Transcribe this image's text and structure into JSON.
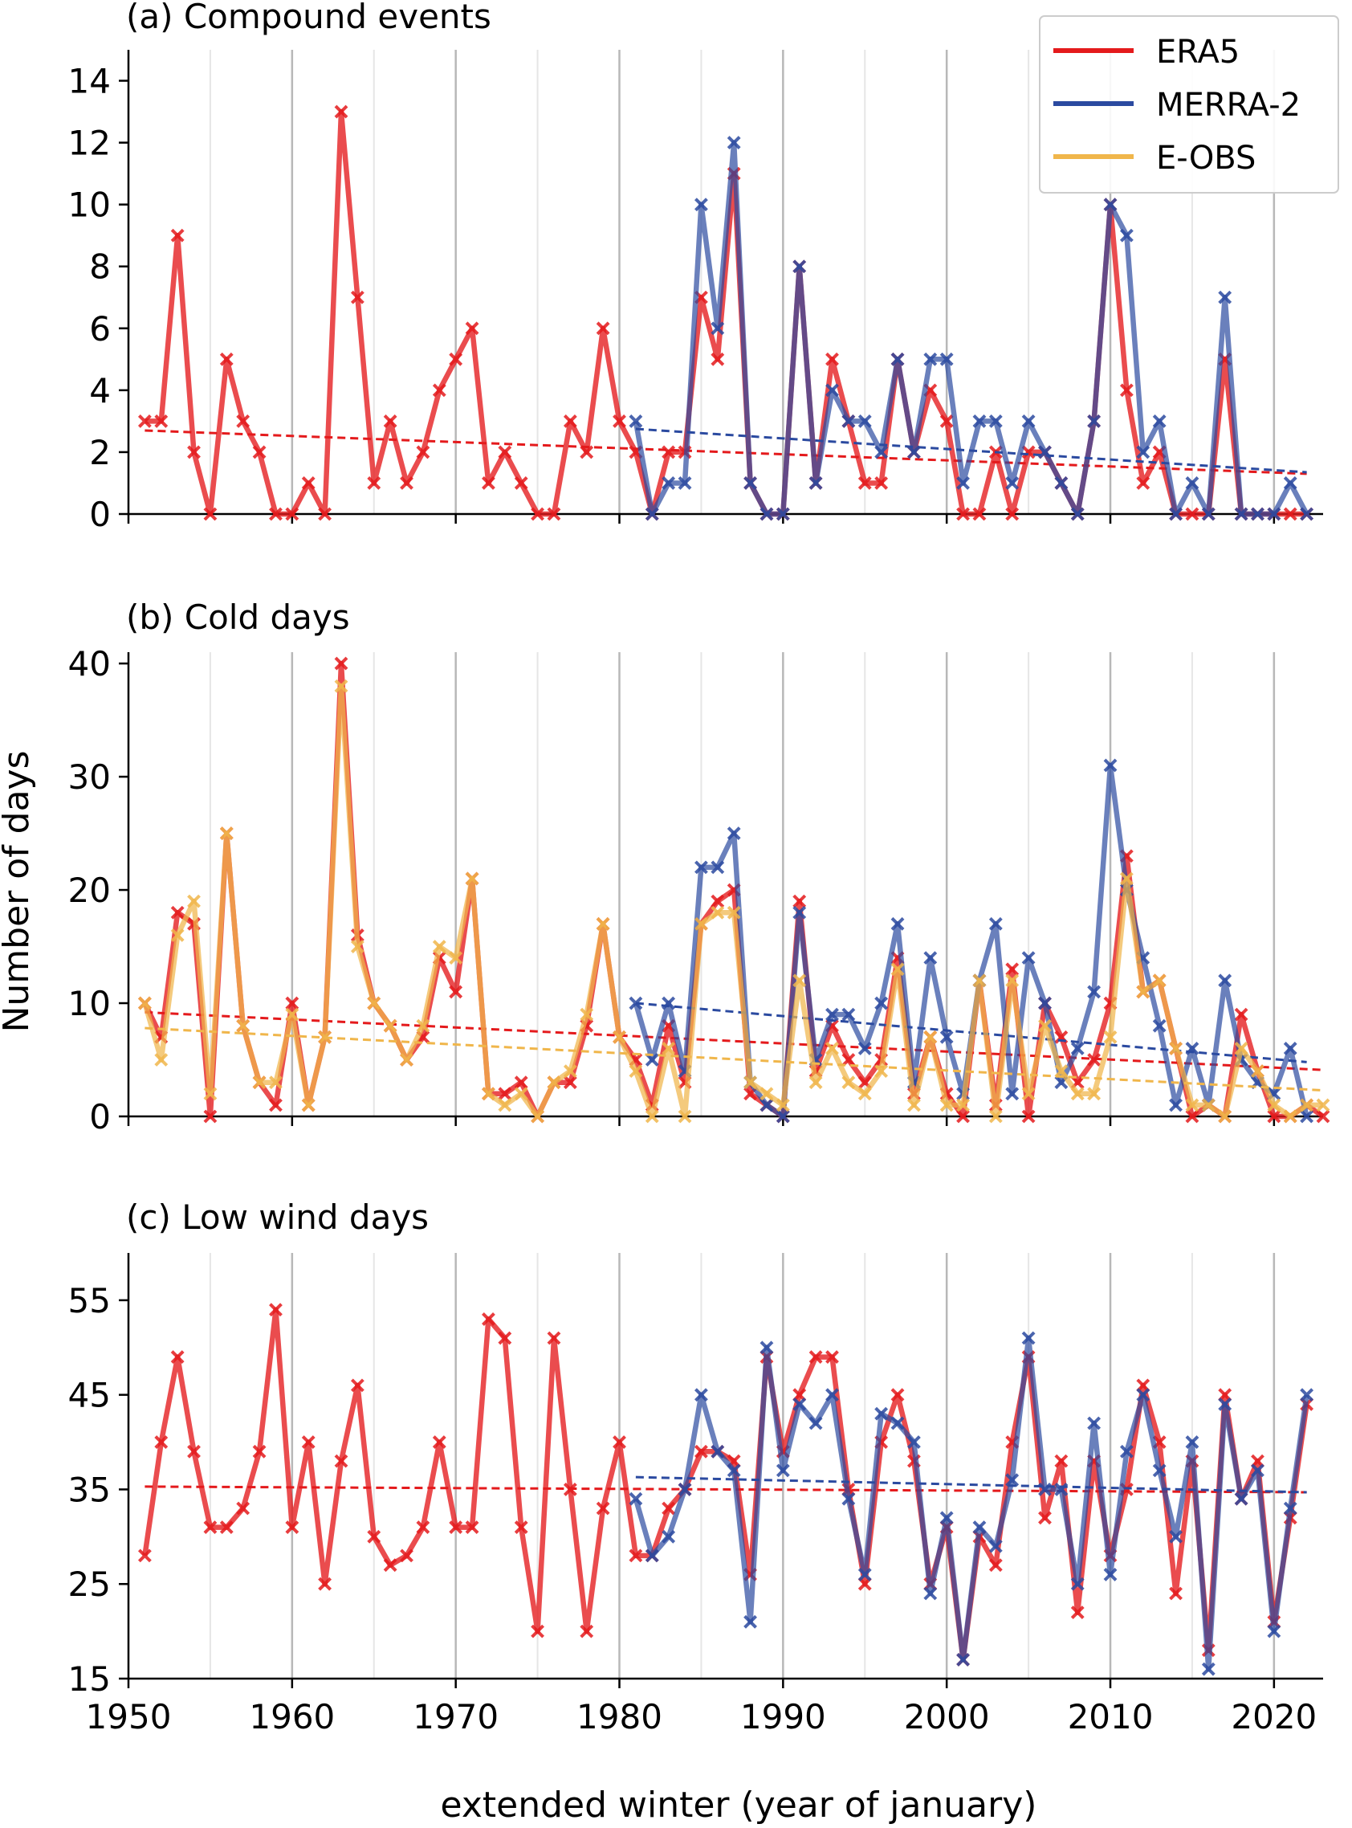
{
  "figure": {
    "ylabel": "Number of days",
    "xlabel": "extended winter (year of january)",
    "x_ticks": [
      1950,
      1960,
      1970,
      1980,
      1990,
      2000,
      2010,
      2020
    ],
    "xlim": [
      1950,
      2023
    ],
    "legend": [
      {
        "name": "ERA5",
        "color": "#e41a1c"
      },
      {
        "name": "MERRA-2",
        "color": "#2b4aa0"
      },
      {
        "name": "E-OBS",
        "color": "#f0b64b"
      }
    ]
  },
  "chart_data": [
    {
      "type": "line",
      "title": "(a) Compound events",
      "ylim": [
        0,
        15
      ],
      "y_ticks": [
        0,
        2,
        4,
        6,
        8,
        10,
        12,
        14
      ],
      "series": [
        {
          "name": "ERA5",
          "key": "era5",
          "start": 1951,
          "values": [
            3,
            3,
            9,
            2,
            0,
            5,
            3,
            2,
            0,
            0,
            1,
            0,
            13,
            7,
            1,
            3,
            1,
            2,
            4,
            5,
            6,
            1,
            2,
            1,
            0,
            0,
            3,
            2,
            6,
            3,
            2,
            0,
            2,
            2,
            7,
            5,
            11,
            1,
            0,
            0,
            8,
            1,
            5,
            3,
            1,
            1,
            5,
            2,
            4,
            3,
            0,
            0,
            2,
            0,
            2,
            2,
            1,
            0,
            3,
            10,
            4,
            1,
            2,
            0,
            0,
            0,
            5,
            0,
            0,
            0,
            0,
            0
          ],
          "trend": [
            2.7,
            1.3
          ]
        },
        {
          "name": "MERRA-2",
          "key": "merra",
          "start": 1981,
          "values": [
            3,
            0,
            1,
            1,
            10,
            6,
            12,
            1,
            0,
            0,
            8,
            1,
            4,
            3,
            3,
            2,
            5,
            2,
            5,
            5,
            1,
            3,
            3,
            1,
            3,
            2,
            1,
            0,
            3,
            10,
            9,
            2,
            3,
            0,
            1,
            0,
            7,
            0,
            0,
            0,
            1,
            0
          ],
          "trend": [
            2.75,
            1.35
          ]
        }
      ]
    },
    {
      "type": "line",
      "title": "(b) Cold days",
      "ylim": [
        0,
        41
      ],
      "y_ticks": [
        0,
        10,
        20,
        30,
        40
      ],
      "series": [
        {
          "name": "ERA5",
          "key": "era5",
          "start": 1951,
          "values": [
            10,
            7,
            18,
            17,
            0,
            25,
            8,
            3,
            1,
            10,
            1,
            7,
            40,
            16,
            10,
            8,
            5,
            7,
            14,
            11,
            21,
            2,
            2,
            3,
            0,
            3,
            3,
            8,
            17,
            7,
            5,
            1,
            8,
            3,
            17,
            19,
            20,
            2,
            1,
            0,
            19,
            4,
            8,
            5,
            3,
            5,
            14,
            2,
            7,
            2,
            0,
            12,
            1,
            13,
            0,
            10,
            7,
            3,
            5,
            10,
            23,
            11,
            12,
            6,
            0,
            1,
            0,
            9,
            4,
            0,
            0,
            1,
            0
          ],
          "trend": [
            9.2,
            4.1
          ]
        },
        {
          "name": "MERRA-2",
          "key": "merra",
          "start": 1981,
          "values": [
            10,
            5,
            10,
            4,
            22,
            22,
            25,
            3,
            1,
            0,
            18,
            5,
            9,
            9,
            6,
            10,
            17,
            3,
            14,
            7,
            2,
            12,
            17,
            2,
            14,
            10,
            3,
            6,
            11,
            31,
            20,
            14,
            8,
            1,
            6,
            1,
            12,
            5,
            3,
            2,
            6,
            0
          ],
          "trend": [
            10.0,
            4.8
          ]
        },
        {
          "name": "E-OBS",
          "key": "eobs",
          "start": 1951,
          "values": [
            10,
            5,
            16,
            19,
            2,
            25,
            8,
            3,
            3,
            9,
            1,
            7,
            38,
            15,
            10,
            8,
            5,
            8,
            15,
            14,
            21,
            2,
            1,
            2,
            0,
            3,
            4,
            9,
            17,
            7,
            4,
            0,
            6,
            0,
            17,
            18,
            18,
            3,
            2,
            1,
            12,
            3,
            6,
            3,
            2,
            4,
            13,
            1,
            7,
            1,
            1,
            12,
            0,
            12,
            2,
            8,
            4,
            2,
            2,
            7,
            21,
            11,
            12,
            6,
            1,
            1,
            0,
            6,
            4,
            1,
            0,
            1,
            1
          ],
          "trend": [
            7.8,
            2.3
          ]
        }
      ]
    },
    {
      "type": "line",
      "title": "(c) Low wind days",
      "ylim": [
        15,
        60
      ],
      "y_ticks": [
        15,
        25,
        35,
        45,
        55
      ],
      "series": [
        {
          "name": "ERA5",
          "key": "era5",
          "start": 1951,
          "values": [
            28,
            40,
            49,
            39,
            31,
            31,
            33,
            39,
            54,
            31,
            40,
            25,
            38,
            46,
            30,
            27,
            28,
            31,
            40,
            31,
            31,
            53,
            51,
            31,
            20,
            51,
            35,
            20,
            33,
            40,
            28,
            28,
            33,
            35,
            39,
            39,
            38,
            26,
            49,
            39,
            45,
            49,
            49,
            35,
            25,
            40,
            45,
            38,
            25,
            31,
            17,
            30,
            27,
            40,
            49,
            32,
            38,
            22,
            38,
            28,
            35,
            46,
            40,
            24,
            38,
            18,
            45,
            34,
            38,
            21,
            32,
            44
          ],
          "trend": [
            35.3,
            34.7
          ]
        },
        {
          "name": "MERRA-2",
          "key": "merra",
          "start": 1981,
          "values": [
            34,
            28,
            30,
            35,
            45,
            39,
            37,
            21,
            50,
            37,
            44,
            42,
            45,
            34,
            26,
            43,
            42,
            40,
            24,
            32,
            17,
            31,
            29,
            36,
            51,
            35,
            35,
            25,
            42,
            26,
            39,
            45,
            37,
            30,
            40,
            16,
            44,
            34,
            37,
            20,
            33,
            45
          ],
          "trend": [
            36.3,
            34.7
          ]
        }
      ]
    }
  ]
}
